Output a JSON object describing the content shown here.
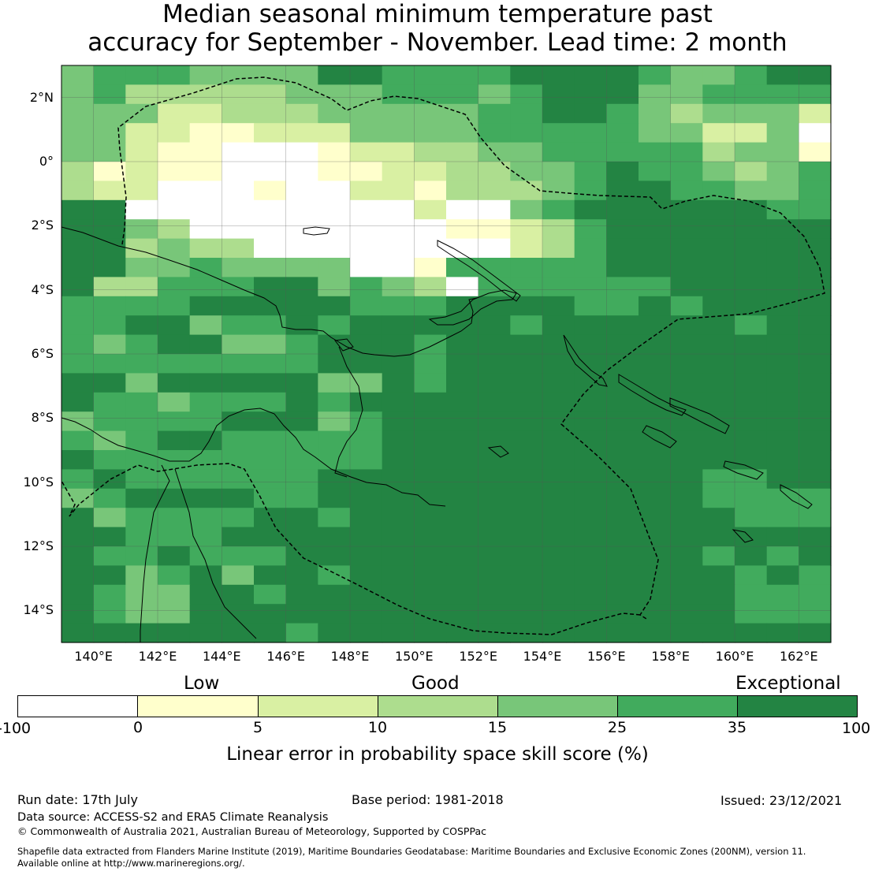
{
  "title": {
    "line1": "Median seasonal minimum temperature past",
    "line2": "accuracy for September - November. Lead time: 2 month"
  },
  "map": {
    "lat_labels": [
      "2°N",
      "0°",
      "2°S",
      "4°S",
      "6°S",
      "8°S",
      "10°S",
      "12°S",
      "14°S"
    ],
    "lon_labels": [
      "140°E",
      "142°E",
      "144°E",
      "146°E",
      "148°E",
      "150°E",
      "152°E",
      "154°E",
      "156°E",
      "158°E",
      "160°E",
      "162°E"
    ],
    "lat_range": [
      3,
      -15
    ],
    "lon_range": [
      139,
      163
    ],
    "grid_rows": [
      "455544446655556666544566",
      "453333344455545666445555",
      "444223334444455665434442",
      "442211222444455555442240",
      "442110001223344555553441",
      "312110001122334456554345",
      "322000100221333456655445",
      "660000000002004566666655",
      "664300000000112356666666",
      "663433000000002356666666",
      "664454444001555556666666",
      "633555664543055555566666",
      "555566666555666655656666",
      "556645565666665666666566",
      "545664456665666666666666",
      "555555556665666666666666",
      "664666664465666666666666",
      "655455565666666666666666",
      "455556664566666666666666",
      "545665555566666666666666",
      "655555555566666666666666",
      "565555556666666666665566",
      "456666556666666666665555",
      "645555665666666666666555",
      "665556666666666666666666",
      "655655566666666666665656",
      "664564665666666666666565",
      "654466566666666666666555",
      "654466666666666666666555",
      "666666656666666666666666"
    ],
    "colors": [
      "#ffffff",
      "#ffffcc",
      "#d9f0a3",
      "#addd8e",
      "#78c679",
      "#41ab5d",
      "#238443"
    ]
  },
  "legend": {
    "categories": [
      "Low",
      "Good",
      "Exceptional"
    ],
    "ticks": [
      "-100",
      "0",
      "5",
      "10",
      "15",
      "25",
      "35",
      "100"
    ],
    "title": "Linear error in probability space skill score (%)"
  },
  "footer": {
    "run_date": "Run date: 17th July",
    "base_period": "Base period: 1981-2018",
    "issued": "Issued: 23/12/2021",
    "data_source": "Data source: ACCESS-S2 and ERA5 Climate Reanalysis",
    "copyright": "© Commonwealth of Australia 2021, Australian Bureau of Meteorology, Supported by COSPPac",
    "shapefile1": "Shapefile data extracted from Flanders Marine Institute (2019), Maritime Boundaries Geodatabase: Maritime Boundaries and Exclusive Economic Zones (200NM), version 11.",
    "shapefile2": "Available online at http://www.marineregions.org/."
  }
}
